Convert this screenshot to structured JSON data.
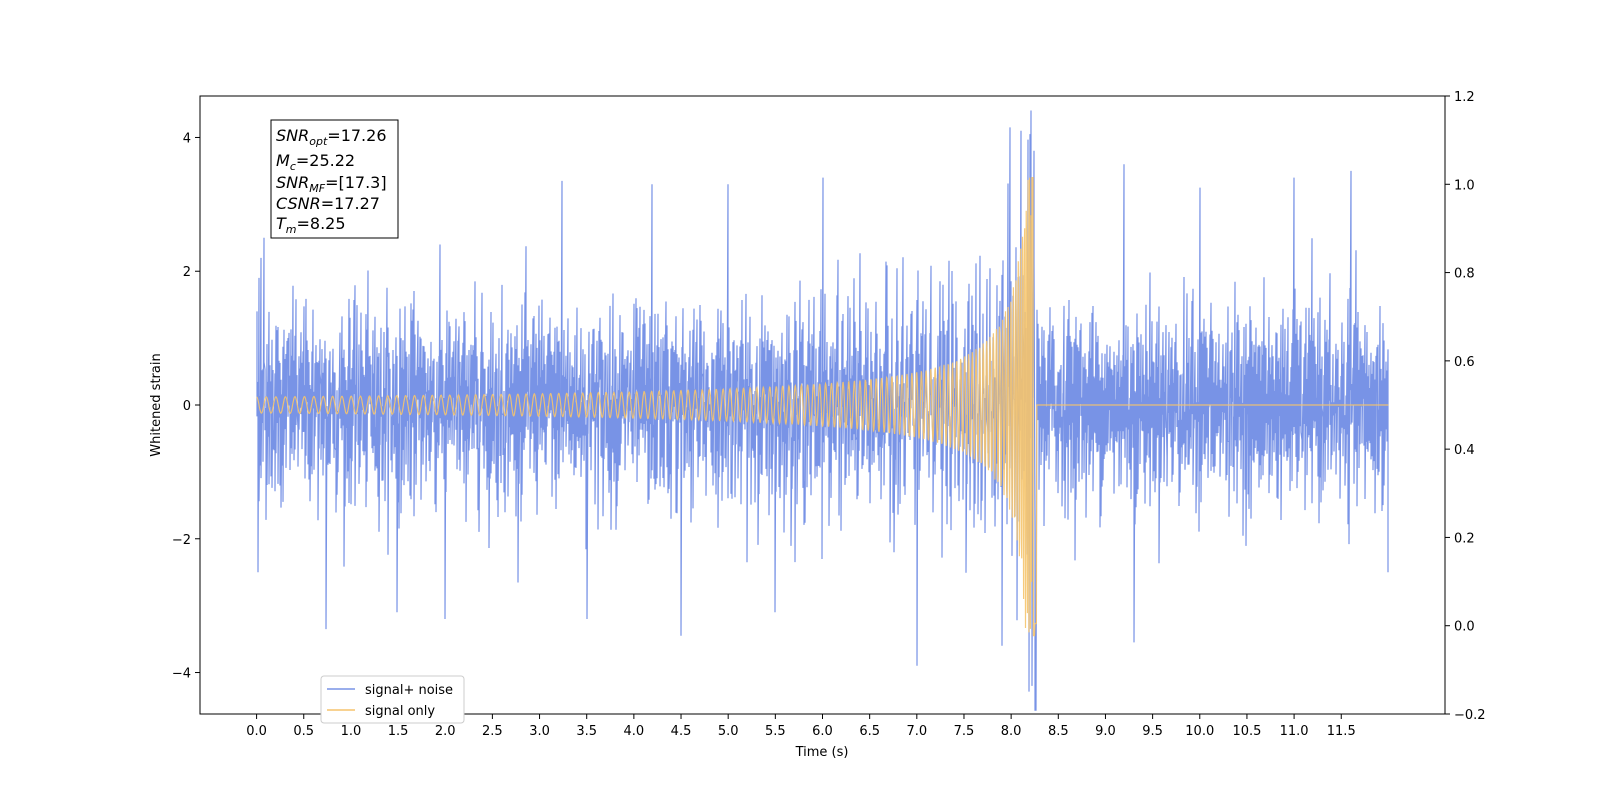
{
  "chart_data": {
    "type": "line",
    "xlabel": "Time (s)",
    "ylabel": "Whitened strain",
    "xlim": [
      -0.6,
      12.6
    ],
    "ylim": [
      -4.62,
      4.62
    ],
    "y2lim": [
      -0.2,
      1.2
    ],
    "x_ticks": [
      "0.0",
      "0.5",
      "1.0",
      "1.5",
      "2.0",
      "2.5",
      "3.0",
      "3.5",
      "4.0",
      "4.5",
      "5.0",
      "5.5",
      "6.0",
      "6.5",
      "7.0",
      "7.5",
      "8.0",
      "8.5",
      "9.0",
      "9.5",
      "10.0",
      "10.5",
      "11.0",
      "11.5"
    ],
    "y_ticks": [
      "−4",
      "−2",
      "0",
      "2",
      "4"
    ],
    "y2_ticks": [
      "−0.2",
      "0.0",
      "0.2",
      "0.4",
      "0.6",
      "0.8",
      "1.0",
      "1.2"
    ],
    "grid": false,
    "legend_position": "lower-left",
    "series": [
      {
        "name": "signal+ noise",
        "color": "#7893e6",
        "description_points": {
          "x": [
            0.0,
            0.01,
            0.03,
            0.05,
            0.08,
            0.74,
            1.49,
            2.0,
            3.24,
            3.5,
            4.19,
            4.5,
            5.0,
            5.5,
            6.0,
            7.0,
            7.9,
            7.99,
            8.1,
            8.2,
            8.22,
            8.24,
            8.26,
            9.2,
            9.3,
            10.0,
            11.0,
            11.6,
            12.0
          ],
          "y": [
            1.4,
            -2.5,
            1.9,
            2.2,
            2.5,
            -3.35,
            -3.1,
            -3.2,
            3.35,
            -3.2,
            3.3,
            -3.45,
            3.3,
            -3.1,
            3.4,
            -3.9,
            -3.6,
            4.15,
            4.1,
            4.05,
            -4.2,
            3.8,
            -3.7,
            3.6,
            -3.55,
            3.25,
            3.4,
            3.5,
            -2.5
          ]
        },
        "noise_sigma": 0.7
      },
      {
        "name": "signal only",
        "color": "#f5c46d",
        "chirp": {
          "start": 0.0,
          "merger_time": 8.25,
          "end": 12.0,
          "peak_amplitude": 3.4,
          "min_amplitude": -3.45,
          "early_amplitude": 0.03
        }
      }
    ]
  },
  "annotation": {
    "snr_opt": {
      "base": "SNR",
      "sub": "opt",
      "value": "=17.26"
    },
    "mc": {
      "base": "M",
      "sub": "c",
      "value": "=25.22"
    },
    "snr_mf": {
      "base": "SNR",
      "sub": "MF",
      "value": "=[17.3]"
    },
    "csnr": {
      "base": "CSNR",
      "value": "=17.27"
    },
    "tm": {
      "base": "T",
      "sub": "m",
      "value": "=8.25"
    }
  }
}
